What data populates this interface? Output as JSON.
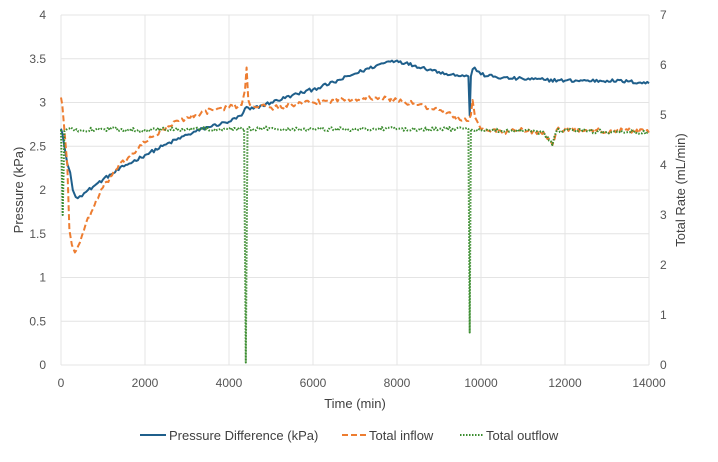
{
  "chart_data": {
    "type": "line",
    "title": "",
    "xlabel": "Time (min)",
    "ylabel_left": "Pressure (kPa)",
    "ylabel_right": "Total Rate (mL/min)",
    "xlim": [
      0,
      14000
    ],
    "ylim_left": [
      0,
      4
    ],
    "ylim_right": [
      0,
      7
    ],
    "x_ticks": [
      0,
      2000,
      4000,
      6000,
      8000,
      10000,
      12000,
      14000
    ],
    "y_left_ticks": [
      "0",
      "0.5",
      "1",
      "1.5",
      "2",
      "2.5",
      "3",
      "3.5",
      "4"
    ],
    "y_left_tick_values": [
      0,
      0.5,
      1,
      1.5,
      2,
      2.5,
      3,
      3.5,
      4
    ],
    "y_right_ticks": [
      "0",
      "1",
      "2",
      "3",
      "4",
      "5",
      "6",
      "7"
    ],
    "y_right_tick_values": [
      0,
      1,
      2,
      3,
      4,
      5,
      6,
      7
    ],
    "grid": true,
    "legend_position": "bottom",
    "series": [
      {
        "name": "Pressure Difference (kPa)",
        "axis": "left",
        "color": "#1f5f8b",
        "style": "solid",
        "points": [
          [
            0,
            2.7
          ],
          [
            30,
            2.65
          ],
          [
            80,
            2.5
          ],
          [
            150,
            2.3
          ],
          [
            220,
            2.2
          ],
          [
            280,
            2.0
          ],
          [
            350,
            1.92
          ],
          [
            450,
            1.93
          ],
          [
            600,
            1.98
          ],
          [
            800,
            2.05
          ],
          [
            1000,
            2.12
          ],
          [
            1200,
            2.18
          ],
          [
            1500,
            2.27
          ],
          [
            2000,
            2.4
          ],
          [
            2500,
            2.52
          ],
          [
            3000,
            2.63
          ],
          [
            3500,
            2.72
          ],
          [
            4000,
            2.78
          ],
          [
            4300,
            2.85
          ],
          [
            4420,
            2.95
          ],
          [
            4500,
            2.92
          ],
          [
            5000,
            3.0
          ],
          [
            5500,
            3.08
          ],
          [
            6000,
            3.15
          ],
          [
            6500,
            3.23
          ],
          [
            7000,
            3.33
          ],
          [
            7500,
            3.42
          ],
          [
            7800,
            3.47
          ],
          [
            8000,
            3.48
          ],
          [
            8200,
            3.45
          ],
          [
            8600,
            3.4
          ],
          [
            9000,
            3.35
          ],
          [
            9300,
            3.32
          ],
          [
            9600,
            3.3
          ],
          [
            9700,
            3.3
          ],
          [
            9730,
            2.85
          ],
          [
            9760,
            3.3
          ],
          [
            9800,
            3.38
          ],
          [
            9850,
            3.4
          ],
          [
            10000,
            3.32
          ],
          [
            10500,
            3.28
          ],
          [
            11000,
            3.27
          ],
          [
            11500,
            3.26
          ],
          [
            12000,
            3.25
          ],
          [
            12500,
            3.25
          ],
          [
            13000,
            3.25
          ],
          [
            13500,
            3.24
          ],
          [
            14000,
            3.22
          ]
        ]
      },
      {
        "name": "Total inflow",
        "axis": "right",
        "color": "#ed7d31",
        "style": "dashed",
        "points": [
          [
            0,
            5.35
          ],
          [
            30,
            5.2
          ],
          [
            80,
            4.7
          ],
          [
            150,
            4.0
          ],
          [
            200,
            2.7
          ],
          [
            260,
            2.4
          ],
          [
            330,
            2.25
          ],
          [
            450,
            2.45
          ],
          [
            600,
            2.85
          ],
          [
            800,
            3.2
          ],
          [
            1000,
            3.55
          ],
          [
            1300,
            3.9
          ],
          [
            1600,
            4.15
          ],
          [
            2000,
            4.45
          ],
          [
            2400,
            4.7
          ],
          [
            2800,
            4.88
          ],
          [
            3200,
            5.0
          ],
          [
            3600,
            5.1
          ],
          [
            4000,
            5.15
          ],
          [
            4300,
            5.2
          ],
          [
            4380,
            5.5
          ],
          [
            4420,
            5.95
          ],
          [
            4460,
            5.3
          ],
          [
            4500,
            5.2
          ],
          [
            5000,
            5.15
          ],
          [
            5500,
            5.2
          ],
          [
            6000,
            5.25
          ],
          [
            6500,
            5.3
          ],
          [
            7000,
            5.33
          ],
          [
            7500,
            5.35
          ],
          [
            8000,
            5.3
          ],
          [
            8500,
            5.2
          ],
          [
            9000,
            5.1
          ],
          [
            9300,
            5.0
          ],
          [
            9500,
            4.9
          ],
          [
            9700,
            4.88
          ],
          [
            9760,
            5.0
          ],
          [
            9800,
            5.3
          ],
          [
            9860,
            4.95
          ],
          [
            10000,
            4.72
          ],
          [
            10500,
            4.65
          ],
          [
            11000,
            4.7
          ],
          [
            11500,
            4.65
          ],
          [
            11700,
            4.4
          ],
          [
            11800,
            4.7
          ],
          [
            12000,
            4.72
          ],
          [
            12500,
            4.7
          ],
          [
            13000,
            4.68
          ],
          [
            13500,
            4.7
          ],
          [
            14000,
            4.65
          ]
        ]
      },
      {
        "name": "Total outflow",
        "axis": "right",
        "color": "#3a8c2e",
        "style": "dotted",
        "points": [
          [
            0,
            4.7
          ],
          [
            40,
            3.0
          ],
          [
            80,
            4.68
          ],
          [
            150,
            4.72
          ],
          [
            500,
            4.7
          ],
          [
            1000,
            4.72
          ],
          [
            2000,
            4.7
          ],
          [
            3000,
            4.72
          ],
          [
            4000,
            4.72
          ],
          [
            4360,
            4.72
          ],
          [
            4400,
            0.05
          ],
          [
            4440,
            4.72
          ],
          [
            5000,
            4.73
          ],
          [
            6000,
            4.72
          ],
          [
            7000,
            4.72
          ],
          [
            8000,
            4.72
          ],
          [
            9000,
            4.72
          ],
          [
            9700,
            4.72
          ],
          [
            9730,
            0.65
          ],
          [
            9760,
            4.72
          ],
          [
            10000,
            4.7
          ],
          [
            10500,
            4.68
          ],
          [
            11000,
            4.68
          ],
          [
            11500,
            4.65
          ],
          [
            11700,
            4.4
          ],
          [
            11800,
            4.68
          ],
          [
            12000,
            4.7
          ],
          [
            12500,
            4.68
          ],
          [
            13000,
            4.66
          ],
          [
            13500,
            4.66
          ],
          [
            14000,
            4.64
          ]
        ]
      }
    ]
  }
}
